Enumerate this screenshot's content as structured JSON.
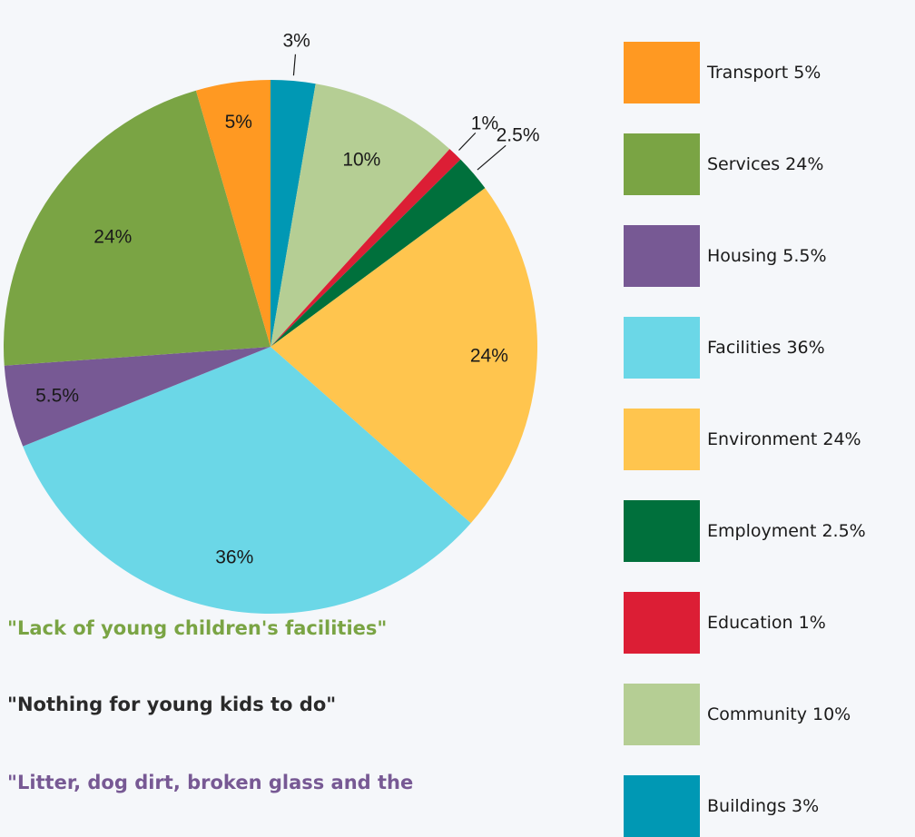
{
  "chart_data": {
    "type": "pie",
    "slices": [
      {
        "name": "Buildings",
        "value": 3,
        "label": "3%",
        "color": "#0098b4"
      },
      {
        "name": "Community",
        "value": 10,
        "label": "10%",
        "color": "#b5ce94"
      },
      {
        "name": "Education",
        "value": 1,
        "label": "1%",
        "color": "#dc1e35"
      },
      {
        "name": "Employment",
        "value": 2.5,
        "label": "2.5%",
        "color": "#00703c"
      },
      {
        "name": "Environment",
        "value": 24,
        "label": "24%",
        "color": "#ffc54e"
      },
      {
        "name": "Facilities",
        "value": 36,
        "label": "36%",
        "color": "#6bd7e7"
      },
      {
        "name": "Housing",
        "value": 5.5,
        "label": "5.5%",
        "color": "#775994"
      },
      {
        "name": "Services",
        "value": 24,
        "label": "24%",
        "color": "#7aa444"
      },
      {
        "name": "Transport",
        "value": 5,
        "label": "5%",
        "color": "#ff9922"
      }
    ],
    "legend": {
      "placement": "right",
      "entries": [
        {
          "label": "Transport 5%",
          "color": "#ff9922"
        },
        {
          "label": "Services 24%",
          "color": "#7aa444"
        },
        {
          "label": "Housing 5.5%",
          "color": "#775994"
        },
        {
          "label": "Facilities 36%",
          "color": "#6bd7e7"
        },
        {
          "label": "Environment 24%",
          "color": "#ffc54e"
        },
        {
          "label": "Employment 2.5%",
          "color": "#00703c"
        },
        {
          "label": "Education 1%",
          "color": "#dc1e35"
        },
        {
          "label": "Community 10%",
          "color": "#b5ce94"
        },
        {
          "label": "Buildings 3%",
          "color": "#0098b4"
        }
      ]
    }
  },
  "quotes": [
    {
      "text": "\"Lack of young children's facilities\"",
      "color": "#7aa444"
    },
    {
      "text": "\"Nothing for young kids to do\"",
      "color": "#2a2a2a"
    },
    {
      "text": "\"Litter, dog dirt, broken glass and the",
      "color": "#775994"
    }
  ]
}
